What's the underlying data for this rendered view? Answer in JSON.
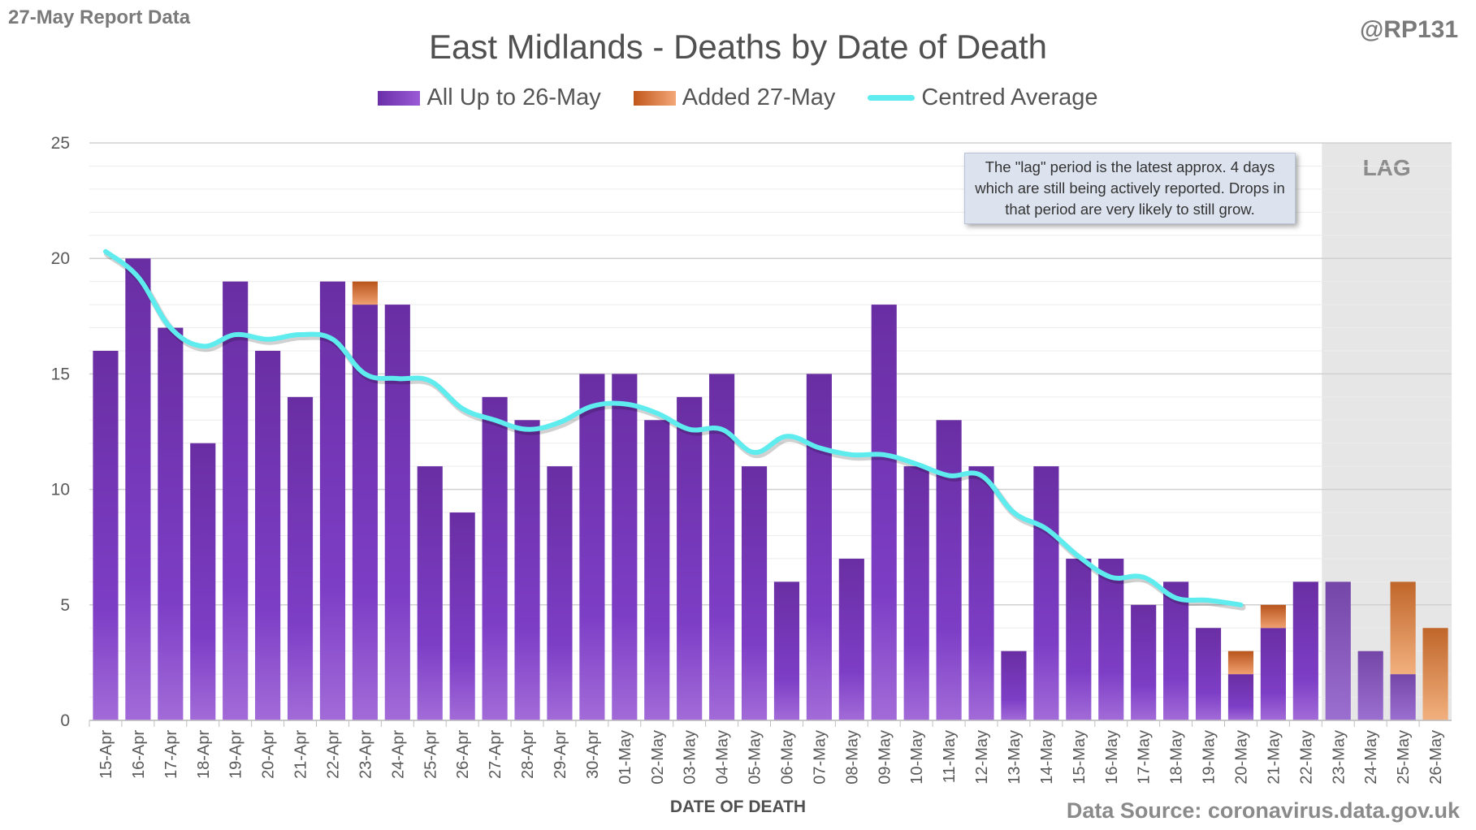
{
  "header": {
    "report_label": "27-May Report Data",
    "author": "@RP131",
    "source": "Data Source: coronavirus.data.gov.uk"
  },
  "note": "The \"lag\" period is the latest approx. 4 days which are still being actively reported.  Drops in that period are very likely to still grow.",
  "lag_label": "LAG",
  "colors": {
    "existing": "#7b3bc0",
    "added": "#e08040",
    "average": "#5fecef",
    "lag_band": "#e6e6e6"
  },
  "chart_data": {
    "type": "bar",
    "stacked": true,
    "title": "East Midlands - Deaths by Date of Death",
    "xlabel": "DATE OF DEATH",
    "ylabel": "",
    "ylim": [
      0,
      25
    ],
    "yticks": [
      0,
      5,
      10,
      15,
      20,
      25
    ],
    "grid": true,
    "legend_position": "top",
    "categories": [
      "15-Apr",
      "16-Apr",
      "17-Apr",
      "18-Apr",
      "19-Apr",
      "20-Apr",
      "21-Apr",
      "22-Apr",
      "23-Apr",
      "24-Apr",
      "25-Apr",
      "26-Apr",
      "27-Apr",
      "28-Apr",
      "29-Apr",
      "30-Apr",
      "01-May",
      "02-May",
      "03-May",
      "04-May",
      "05-May",
      "06-May",
      "07-May",
      "08-May",
      "09-May",
      "10-May",
      "11-May",
      "12-May",
      "13-May",
      "14-May",
      "15-May",
      "16-May",
      "17-May",
      "18-May",
      "19-May",
      "20-May",
      "21-May",
      "22-May",
      "23-May",
      "24-May",
      "25-May",
      "26-May"
    ],
    "lag_categories": [
      "23-May",
      "24-May",
      "25-May",
      "26-May"
    ],
    "series": [
      {
        "name": "All Up to 26-May",
        "values": [
          16,
          20,
          17,
          12,
          19,
          16,
          14,
          19,
          18,
          18,
          11,
          9,
          14,
          13,
          11,
          15,
          15,
          13,
          14,
          15,
          11,
          6,
          15,
          7,
          18,
          11,
          13,
          11,
          3,
          11,
          7,
          7,
          5,
          6,
          4,
          2,
          4,
          6,
          6,
          3,
          2,
          0
        ]
      },
      {
        "name": "Added 27-May",
        "values": [
          0,
          0,
          0,
          0,
          0,
          0,
          0,
          0,
          1,
          0,
          0,
          0,
          0,
          0,
          0,
          0,
          0,
          0,
          0,
          0,
          0,
          0,
          0,
          0,
          0,
          0,
          0,
          0,
          0,
          0,
          0,
          0,
          0,
          0,
          0,
          1,
          1,
          0,
          0,
          0,
          4,
          4
        ]
      },
      {
        "name": "Centred Average",
        "type": "line",
        "values": [
          20.3,
          19.2,
          17.0,
          16.2,
          16.7,
          16.5,
          16.7,
          16.5,
          15.0,
          14.8,
          14.7,
          13.5,
          13.0,
          12.6,
          12.9,
          13.6,
          13.7,
          13.3,
          12.6,
          12.6,
          11.6,
          12.3,
          11.8,
          11.5,
          11.5,
          11.1,
          10.6,
          10.6,
          9.0,
          8.3,
          7.1,
          6.2,
          6.2,
          5.3,
          5.2,
          5.0,
          null,
          null,
          null,
          null,
          null,
          null
        ]
      }
    ]
  }
}
